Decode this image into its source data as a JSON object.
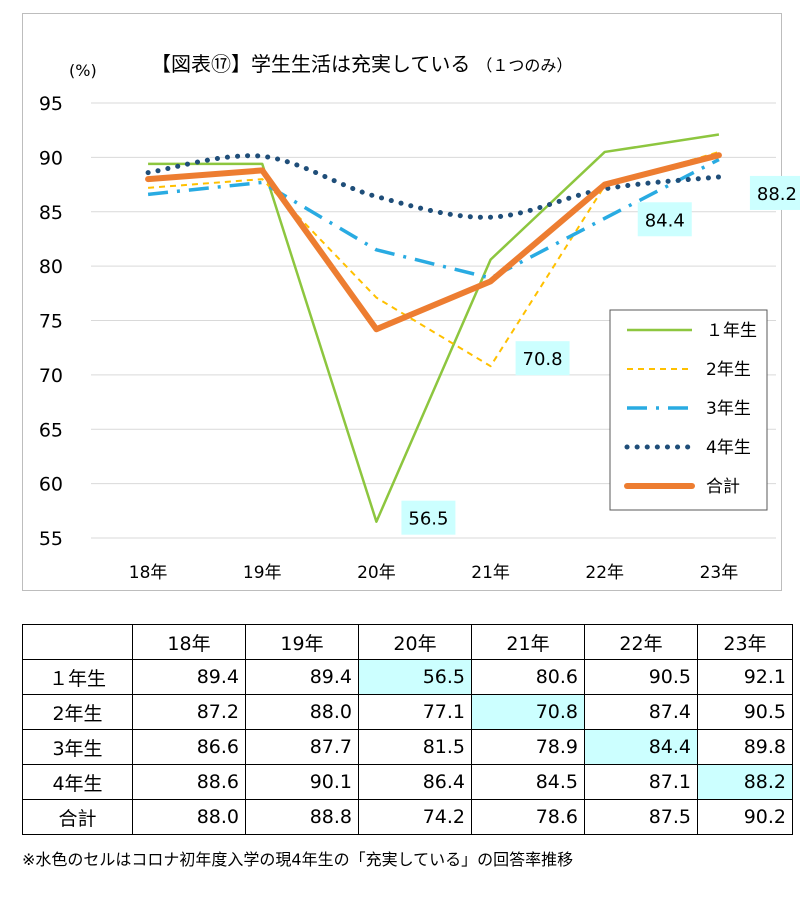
{
  "chart_data": {
    "type": "line",
    "title": "【図表⑰】学生生活は充実している",
    "title_suffix": "（１つのみ）",
    "y_unit": "(%)",
    "categories": [
      "18年",
      "19年",
      "20年",
      "21年",
      "22年",
      "23年"
    ],
    "ylim": [
      55,
      95
    ],
    "yticks": [
      55,
      60,
      65,
      70,
      75,
      80,
      85,
      90,
      95
    ],
    "grid": true,
    "legend_position": "right",
    "series": [
      {
        "name": "１年生",
        "values": [
          89.4,
          89.4,
          56.5,
          80.6,
          90.5,
          92.1
        ],
        "color": "#8dc63f",
        "style": "solid"
      },
      {
        "name": "2年生",
        "values": [
          87.2,
          88.0,
          77.1,
          70.8,
          87.4,
          90.5
        ],
        "color": "#ffc000",
        "style": "dashed"
      },
      {
        "name": "3年生",
        "values": [
          86.6,
          87.7,
          81.5,
          78.9,
          84.4,
          89.8
        ],
        "color": "#29abe2",
        "style": "dashdot"
      },
      {
        "name": "4年生",
        "values": [
          88.6,
          90.1,
          86.4,
          84.5,
          87.1,
          88.2
        ],
        "color": "#1f4e79",
        "style": "dotted"
      },
      {
        "name": "合計",
        "values": [
          88.0,
          88.8,
          74.2,
          78.6,
          87.5,
          90.2
        ],
        "color": "#ed7d31",
        "style": "thick"
      }
    ],
    "annotations": [
      {
        "text": "56.5",
        "series": "１年生",
        "category": "20年"
      },
      {
        "text": "70.8",
        "series": "2年生",
        "category": "21年"
      },
      {
        "text": "84.4",
        "series": "3年生",
        "category": "22年"
      },
      {
        "text": "88.2",
        "series": "4年生",
        "category": "23年"
      }
    ],
    "annotation_bg": "#ccffff"
  },
  "table": {
    "columns": [
      "18年",
      "19年",
      "20年",
      "21年",
      "22年",
      "23年"
    ],
    "rows": [
      {
        "label": "１年生",
        "values": [
          "89.4",
          "89.4",
          "56.5",
          "80.6",
          "90.5",
          "92.1"
        ],
        "highlight": 2
      },
      {
        "label": "2年生",
        "values": [
          "87.2",
          "88.0",
          "77.1",
          "70.8",
          "87.4",
          "90.5"
        ],
        "highlight": 3
      },
      {
        "label": "3年生",
        "values": [
          "86.6",
          "87.7",
          "81.5",
          "78.9",
          "84.4",
          "89.8"
        ],
        "highlight": 4
      },
      {
        "label": "4年生",
        "values": [
          "88.6",
          "90.1",
          "86.4",
          "84.5",
          "87.1",
          "88.2"
        ],
        "highlight": 5
      },
      {
        "label": "合計",
        "values": [
          "88.0",
          "88.8",
          "74.2",
          "78.6",
          "87.5",
          "90.2"
        ],
        "highlight": -1
      }
    ]
  },
  "note": "※水色のセルはコロナ初年度入学の現4年生の「充実している」の回答率推移"
}
